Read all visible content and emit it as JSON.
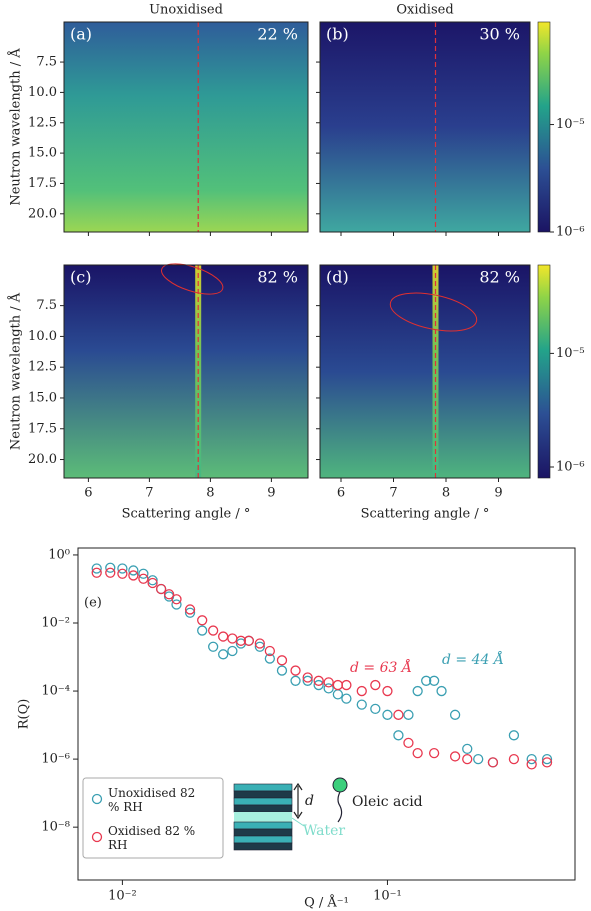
{
  "chart_data": [
    {
      "type": "heatmap",
      "title": "Unoxidised",
      "panel_label": "(a)",
      "annotation": "22 %",
      "ylabel": "Neutron wavelength / Å",
      "xlim": [
        5.6,
        9.6
      ],
      "ylim": [
        21.5,
        4.2
      ],
      "reference_x": 7.8,
      "yticks": [
        7.5,
        {
          "value": 10,
          "label": "10.0"
        },
        12.5,
        {
          "value": 15,
          "label": "15.0"
        },
        17.5,
        {
          "value": 20,
          "label": "20.0"
        }
      ]
    },
    {
      "type": "heatmap",
      "title": "Oxidised",
      "panel_label": "(b)",
      "annotation": "30 %",
      "xlim": [
        5.6,
        9.6
      ],
      "ylim": [
        21.5,
        4.2
      ],
      "reference_x": 7.8,
      "colorbar": {
        "lim": [
          1e-06,
          9e-05
        ],
        "log": true,
        "ticks": [
          {
            "value": 1e-06,
            "label": "10⁻⁶"
          },
          {
            "value": 1e-05,
            "label": "10⁻⁵"
          }
        ]
      }
    },
    {
      "type": "heatmap",
      "panel_label": "(c)",
      "annotation": "82 %",
      "ylabel": "Neutron wavelength / Å",
      "xlabel": "Scattering angle / °",
      "xlim": [
        5.6,
        9.6
      ],
      "ylim": [
        21.5,
        4.2
      ],
      "reference_x": 7.8,
      "xticks": [
        6,
        7,
        8,
        9
      ],
      "yticks": [
        7.5,
        {
          "value": 10,
          "label": "10.0"
        },
        12.5,
        {
          "value": 15,
          "label": "15.0"
        },
        17.5,
        {
          "value": 20,
          "label": "20.0"
        }
      ]
    },
    {
      "type": "heatmap",
      "panel_label": "(d)",
      "annotation": "82 %",
      "xlabel": "Scattering angle / °",
      "xlim": [
        5.6,
        9.6
      ],
      "ylim": [
        21.5,
        4.2
      ],
      "reference_x": 7.8,
      "xticks": [
        6,
        7,
        8,
        9
      ],
      "colorbar": {
        "lim": [
          8e-07,
          6e-05
        ],
        "log": true,
        "ticks": [
          {
            "value": 1e-06,
            "label": "10⁻⁶"
          },
          {
            "value": 1e-05,
            "label": "10⁻⁵"
          }
        ]
      }
    },
    {
      "type": "scatter",
      "panel_label": "(e)",
      "xlabel": "Q / Å⁻¹",
      "ylabel": "R(Q)",
      "log_x": true,
      "log_y": true,
      "xlim": [
        0.0068,
        0.51
      ],
      "ylim": [
        2.8e-10,
        1.6
      ],
      "xticks": [
        {
          "value": 0.01,
          "label": "10⁻²"
        },
        {
          "value": 0.1,
          "label": "10⁻¹"
        }
      ],
      "yticks": [
        {
          "value": 1,
          "label": "10⁰"
        },
        {
          "value": 0.01,
          "label": "10⁻²"
        },
        {
          "value": 0.0001,
          "label": "10⁻⁴"
        },
        {
          "value": 1e-06,
          "label": "10⁻⁶"
        },
        {
          "value": 1e-08,
          "label": "10⁻⁸"
        }
      ],
      "annotations": [
        "d = 63 Å",
        "d = 44 Å"
      ],
      "inset_labels": [
        "d",
        "Oleic acid",
        "Water"
      ],
      "series": [
        {
          "name": "Unoxidised 82 % RH",
          "color": "#3a9fb2",
          "x": [
            0.008,
            0.009,
            0.01,
            0.011,
            0.012,
            0.013,
            0.014,
            0.015,
            0.016,
            0.018,
            0.02,
            0.022,
            0.024,
            0.026,
            0.028,
            0.03,
            0.033,
            0.036,
            0.04,
            0.045,
            0.05,
            0.055,
            0.06,
            0.065,
            0.07,
            0.08,
            0.09,
            0.1,
            0.11,
            0.12,
            0.13,
            0.14,
            0.15,
            0.16,
            0.18,
            0.2,
            0.22,
            0.25,
            0.3,
            0.35,
            0.4
          ],
          "values": [
            0.4,
            0.42,
            0.4,
            0.35,
            0.28,
            0.18,
            0.1,
            0.06,
            0.035,
            0.02,
            0.006,
            0.002,
            0.0012,
            0.0015,
            0.0025,
            0.003,
            0.002,
            0.0009,
            0.0004,
            0.0002,
            0.0002,
            0.00015,
            0.00012,
            8e-05,
            6e-05,
            4e-05,
            3e-05,
            2e-05,
            5e-06,
            2e-05,
            0.0001,
            0.0002,
            0.0002,
            0.0001,
            2e-05,
            2e-06,
            1e-06,
            8e-07,
            5e-06,
            1e-06,
            1e-06
          ]
        },
        {
          "name": "Oxidised 82 % RH",
          "color": "#e8384f",
          "x": [
            0.008,
            0.009,
            0.01,
            0.011,
            0.012,
            0.013,
            0.014,
            0.015,
            0.016,
            0.018,
            0.02,
            0.022,
            0.024,
            0.026,
            0.028,
            0.03,
            0.033,
            0.036,
            0.04,
            0.045,
            0.05,
            0.055,
            0.06,
            0.065,
            0.07,
            0.08,
            0.09,
            0.1,
            0.11,
            0.12,
            0.13,
            0.15,
            0.18,
            0.2,
            0.25,
            0.3,
            0.35,
            0.4
          ],
          "values": [
            0.3,
            0.3,
            0.28,
            0.25,
            0.2,
            0.15,
            0.1,
            0.07,
            0.05,
            0.025,
            0.012,
            0.006,
            0.004,
            0.0035,
            0.003,
            0.003,
            0.0025,
            0.0015,
            0.0008,
            0.0004,
            0.00025,
            0.0002,
            0.00018,
            0.00015,
            0.00015,
            0.0001,
            0.00015,
            0.0001,
            2e-05,
            3e-06,
            1.5e-06,
            1.5e-06,
            1.2e-06,
            1e-06,
            8e-07,
            1e-06,
            7e-07,
            8e-07
          ]
        }
      ]
    }
  ]
}
